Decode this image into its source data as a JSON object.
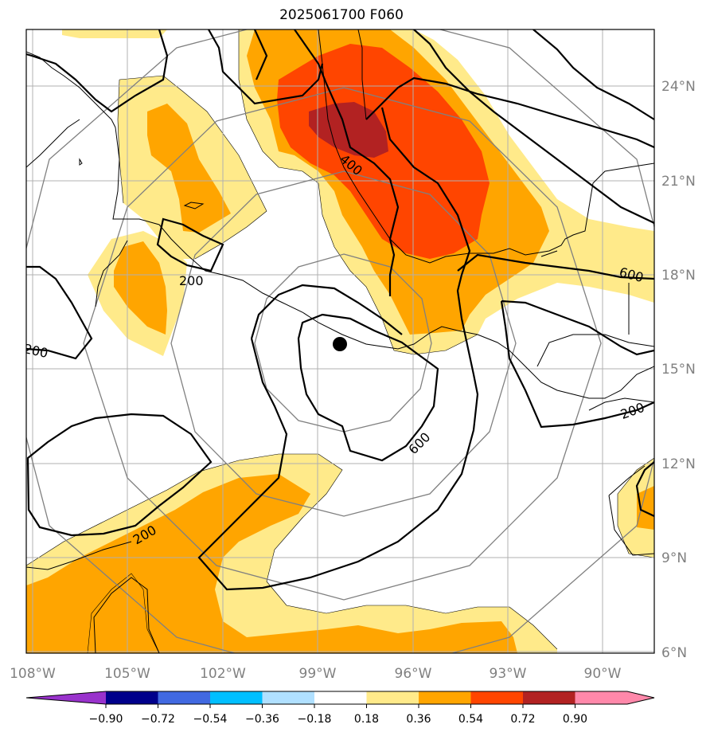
{
  "title": "2025061700 F060",
  "map": {
    "lon_ticks": [
      {
        "label": "108°W",
        "lon": -108
      },
      {
        "label": "105°W",
        "lon": -105
      },
      {
        "label": "102°W",
        "lon": -102
      },
      {
        "label": "99°W",
        "lon": -99
      },
      {
        "label": "96°W",
        "lon": -96
      },
      {
        "label": "93°W",
        "lon": -93
      },
      {
        "label": "90°W",
        "lon": -90
      }
    ],
    "lat_ticks": [
      {
        "label": "24°N",
        "lat": 24
      },
      {
        "label": "21°N",
        "lat": 21
      },
      {
        "label": "18°N",
        "lat": 18
      },
      {
        "label": "15°N",
        "lat": 15
      },
      {
        "label": "12°N",
        "lat": 12
      },
      {
        "label": "9°N",
        "lat": 9
      },
      {
        "label": "6°N",
        "lat": 6
      }
    ],
    "contour_labels": [
      "400",
      "200",
      "200",
      "600",
      "600",
      "200",
      "200"
    ],
    "storm_center": {
      "lon": -97.7,
      "lat": 15.8
    },
    "colors": {
      "c018_036": "#ffea8a",
      "c036_054": "#ffa500",
      "c054_072": "#ff4500",
      "c072_090": "#b22222",
      "coast": "#000000",
      "grid": "#b0b0b0",
      "ring": "#808080"
    }
  },
  "colorbar": {
    "colors": [
      "#9932cc",
      "#00008b",
      "#4169e1",
      "#00bfff",
      "#b0e0ff",
      "#ffffff",
      "#ffea8a",
      "#ffa500",
      "#ff4500",
      "#b22222",
      "#ff88aa"
    ],
    "tick_labels": [
      "−0.90",
      "−0.72",
      "−0.54",
      "−0.36",
      "−0.18",
      "0.18",
      "0.36",
      "0.54",
      "0.72",
      "0.90"
    ]
  }
}
